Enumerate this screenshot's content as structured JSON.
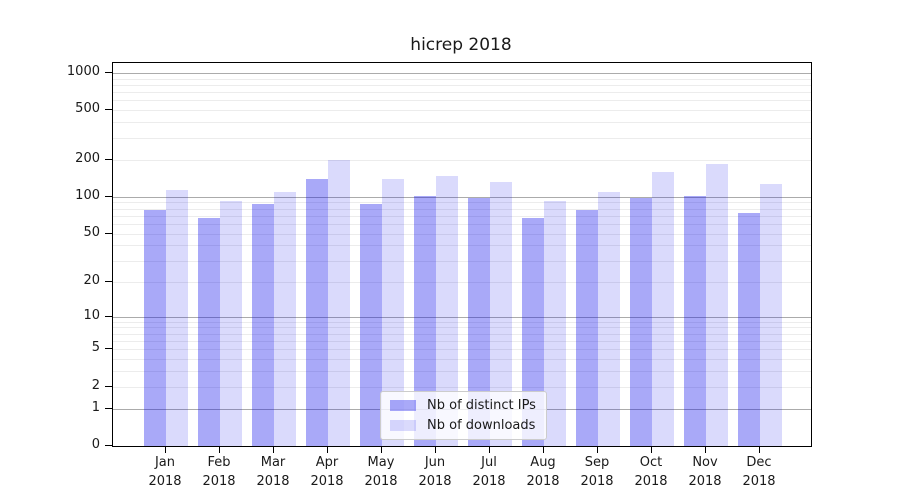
{
  "title": "hicrep 2018",
  "colors": {
    "bar_distinct_ips": "rgba(10,10,235,0.35)",
    "bar_downloads": "rgba(10,10,235,0.15)",
    "grid_major": "#ababab",
    "grid_minor": "#ececec",
    "spine": "#000000",
    "text": "#1a1a1a",
    "legend_border": "#cccccc",
    "legend_bg": "rgba(255,255,255,0.8)"
  },
  "legend": {
    "items": [
      {
        "label": "Nb of distinct IPs"
      },
      {
        "label": "Nb of downloads"
      }
    ]
  },
  "y_axis": {
    "tick_labels": [
      "1000",
      "500",
      "200",
      "100",
      "50",
      "20",
      "10",
      "5",
      "2",
      "1",
      "0"
    ]
  },
  "chart_data": {
    "type": "bar",
    "title": "hicrep 2018",
    "categories": [
      "Jan 2018",
      "Feb 2018",
      "Mar 2018",
      "Apr 2018",
      "May 2018",
      "Jun 2018",
      "Jul 2018",
      "Aug 2018",
      "Sep 2018",
      "Oct 2018",
      "Nov 2018",
      "Dec 2018"
    ],
    "series": [
      {
        "name": "Nb of distinct IPs",
        "color": "rgba(10,10,235,0.35)",
        "values": [
          78,
          67,
          87,
          140,
          88,
          102,
          98,
          67,
          78,
          98,
          102,
          74
        ]
      },
      {
        "name": "Nb of downloads",
        "color": "rgba(10,10,235,0.15)",
        "values": [
          114,
          92,
          109,
          198,
          140,
          147,
          131,
          92,
          110,
          160,
          186,
          127
        ]
      }
    ],
    "yscale": "log1p",
    "y_ticks": [
      0,
      1,
      2,
      5,
      10,
      20,
      50,
      100,
      200,
      500,
      1000
    ],
    "ylim": [
      0,
      1200
    ],
    "grid": "both",
    "legend_position": "lower center",
    "xlabel": "",
    "ylabel": ""
  }
}
